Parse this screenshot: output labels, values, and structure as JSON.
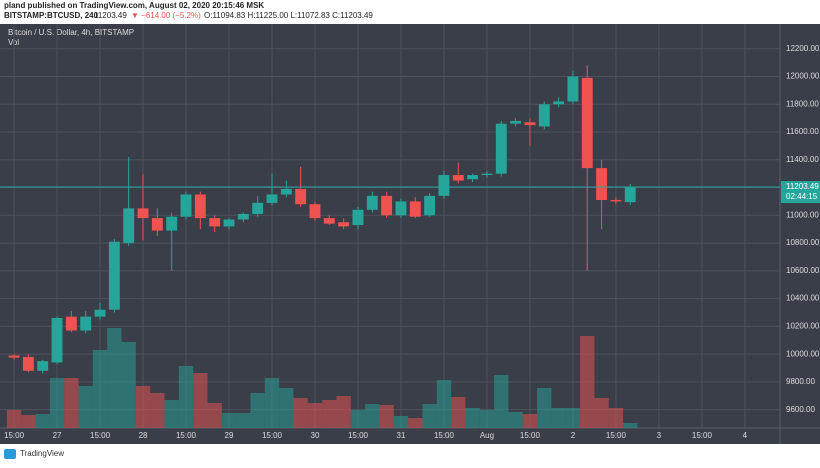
{
  "header": {
    "publisher": "pland published on TradingView.com, August 02, 2020 20:15:46 MSK",
    "symbol": "BITSTAMP:BTCUSD, 240",
    "change": "▼ −614.00 (−5.2%)",
    "ohlc": "O:11094.83 H:11225.00 L:11072.83 C:11203.49"
  },
  "footer": {
    "brand": "TradingView"
  },
  "chart_data": {
    "type": "candlestick",
    "title": "Bitcoin / U.S. Dollar, 4h, BITSTAMP",
    "volume_label": "Vol",
    "countdown": "02:44:15",
    "up_color": "#26a69a",
    "down_color": "#ef5350",
    "background": "#3a3e49",
    "grid": true,
    "x": [
      0,
      1,
      2,
      3,
      4,
      5,
      6,
      7,
      8,
      9,
      10,
      11,
      12,
      13,
      14,
      15,
      16,
      17,
      18,
      19,
      20,
      21,
      22,
      23,
      24,
      25,
      26,
      27,
      28,
      29,
      30,
      31,
      32,
      33,
      34,
      35,
      36,
      37,
      38,
      39,
      40,
      41,
      42,
      43
    ],
    "open": [
      9990,
      9980,
      9880,
      9940,
      10270,
      10170,
      10270,
      10320,
      10800,
      11050,
      10980,
      10890,
      10990,
      11150,
      10980,
      10920,
      10970,
      11010,
      11090,
      11150,
      11190,
      11080,
      10980,
      10950,
      10930,
      11040,
      11140,
      11000,
      11100,
      11000,
      11140,
      11290,
      11260,
      11290,
      11300,
      11660,
      11670,
      11640,
      11800,
      11820,
      11990,
      11340,
      11110,
      11094.83
    ],
    "high": [
      10000,
      10000,
      9960,
      10270,
      10310,
      10310,
      10370,
      10830,
      11420,
      11300,
      11050,
      11020,
      11170,
      11170,
      11000,
      10980,
      11020,
      11140,
      11300,
      11250,
      11350,
      11100,
      11000,
      10980,
      11060,
      11170,
      11170,
      11120,
      11130,
      11160,
      11320,
      11380,
      11300,
      11320,
      11680,
      11700,
      11700,
      11820,
      11850,
      12040,
      12080,
      11400,
      11130,
      11225
    ],
    "low": [
      9960,
      9870,
      9860,
      9930,
      10160,
      10150,
      10250,
      10300,
      10780,
      10820,
      10850,
      10600,
      10970,
      10900,
      10880,
      10900,
      10950,
      10990,
      11070,
      11130,
      11060,
      10960,
      10930,
      10900,
      10900,
      11020,
      10980,
      10980,
      10980,
      10990,
      11120,
      11230,
      11240,
      11270,
      11280,
      11640,
      11500,
      11620,
      11780,
      11800,
      10600,
      10900,
      11080,
      11072.83
    ],
    "close": [
      9975,
      9880,
      9950,
      10260,
      10170,
      10270,
      10320,
      10810,
      11050,
      10980,
      10890,
      10990,
      11150,
      10980,
      10920,
      10970,
      11010,
      11090,
      11150,
      11190,
      11080,
      10980,
      10940,
      10920,
      11040,
      11140,
      11000,
      11100,
      10990,
      11140,
      11290,
      11250,
      11290,
      11300,
      11660,
      11680,
      11650,
      11800,
      11820,
      12000,
      11340,
      11110,
      11100,
      11203.49
    ],
    "volume": [
      18,
      13,
      14,
      50,
      50,
      42,
      78,
      100,
      86,
      42,
      35,
      28,
      62,
      55,
      25,
      15,
      15,
      35,
      50,
      40,
      30,
      25,
      28,
      32,
      18,
      24,
      23,
      12,
      10,
      24,
      48,
      31,
      20,
      18,
      53,
      16,
      14,
      40,
      20,
      20,
      92,
      30,
      20,
      5
    ],
    "xlim": [
      -0.98,
      53.45
    ],
    "xticks": [
      {
        "value": 0,
        "label": "15:00"
      },
      {
        "value": 3,
        "label": "27"
      },
      {
        "value": 6,
        "label": "15:00"
      },
      {
        "value": 9,
        "label": "28"
      },
      {
        "value": 12,
        "label": "15:00"
      },
      {
        "value": 15,
        "label": "29"
      },
      {
        "value": 18,
        "label": "15:00"
      },
      {
        "value": 21,
        "label": "30"
      },
      {
        "value": 24,
        "label": "15:00"
      },
      {
        "value": 27,
        "label": "31"
      },
      {
        "value": 30,
        "label": "15:00"
      },
      {
        "value": 33,
        "label": "Aug"
      },
      {
        "value": 36,
        "label": "15:00"
      },
      {
        "value": 39,
        "label": "2"
      },
      {
        "value": 42,
        "label": "15:00"
      },
      {
        "value": 45,
        "label": "3"
      },
      {
        "value": 48,
        "label": "15:00"
      },
      {
        "value": 51,
        "label": "4"
      }
    ],
    "ylim": [
      9468,
      12378
    ],
    "yticks": [
      {
        "value": 9600,
        "label": "9600.00"
      },
      {
        "value": 9800,
        "label": "9800.00"
      },
      {
        "value": 10000,
        "label": "10000.00"
      },
      {
        "value": 10200,
        "label": "10200.00"
      },
      {
        "value": 10400,
        "label": "10400.00"
      },
      {
        "value": 10600,
        "label": "10600.00"
      },
      {
        "value": 10800,
        "label": "10800.00"
      },
      {
        "value": 11000,
        "label": "11000.00"
      },
      {
        "value": 11200,
        "label": "11200.00"
      },
      {
        "value": 11400,
        "label": "11400.00"
      },
      {
        "value": 11600,
        "label": "11600.00"
      },
      {
        "value": 11800,
        "label": "11800.00"
      },
      {
        "value": 12000,
        "label": "12000.00"
      },
      {
        "value": 12200,
        "label": "12200.00"
      }
    ]
  }
}
